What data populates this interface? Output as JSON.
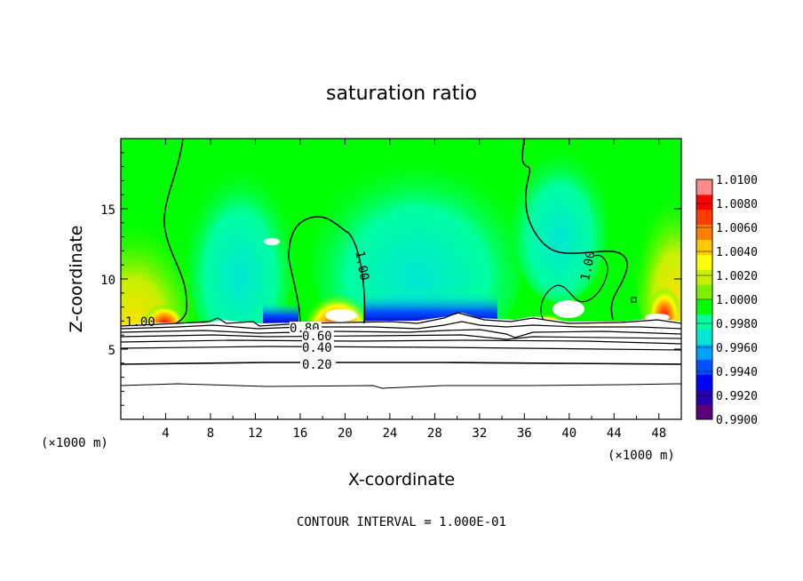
{
  "chart_data": {
    "type": "heatmap",
    "title": "saturation ratio",
    "xlabel": "X-coordinate",
    "ylabel": "Z-coordinate",
    "x_unit": "(×1000 m)",
    "z_unit": "(×1000 m)",
    "xlim": [
      0,
      50
    ],
    "ylim": [
      0,
      20
    ],
    "x_ticks": [
      "4",
      "8",
      "12",
      "16",
      "20",
      "24",
      "28",
      "32",
      "36",
      "40",
      "44",
      "48"
    ],
    "y_ticks": [
      "5",
      "10",
      "15"
    ],
    "colorbar": {
      "min": 0.99,
      "max": 1.01,
      "tick_labels": [
        "1.0100",
        "1.0080",
        "1.0060",
        "1.0040",
        "1.0020",
        "1.0000",
        "0.9980",
        "0.9960",
        "0.9940",
        "0.9920",
        "0.9900"
      ],
      "colors": [
        "#5a0078",
        "#2800b4",
        "#0000ff",
        "#0050ff",
        "#00a0ff",
        "#00e6d2",
        "#00ffa0",
        "#00ff00",
        "#7cf000",
        "#c8f000",
        "#ffff00",
        "#ffc800",
        "#ff8000",
        "#ff3c00",
        "#ff0000",
        "#ff8a8a"
      ]
    },
    "contour_labels": [
      "1.00",
      "1.00",
      "1.00",
      "0.80",
      "0.60",
      "0.40",
      "0.20"
    ],
    "contour_interval_text": "CONTOUR INTERVAL = 1.000E-01"
  },
  "colors": {
    "background": "#00ff00",
    "lower_region": "#ffffff",
    "contour": "#000000"
  }
}
